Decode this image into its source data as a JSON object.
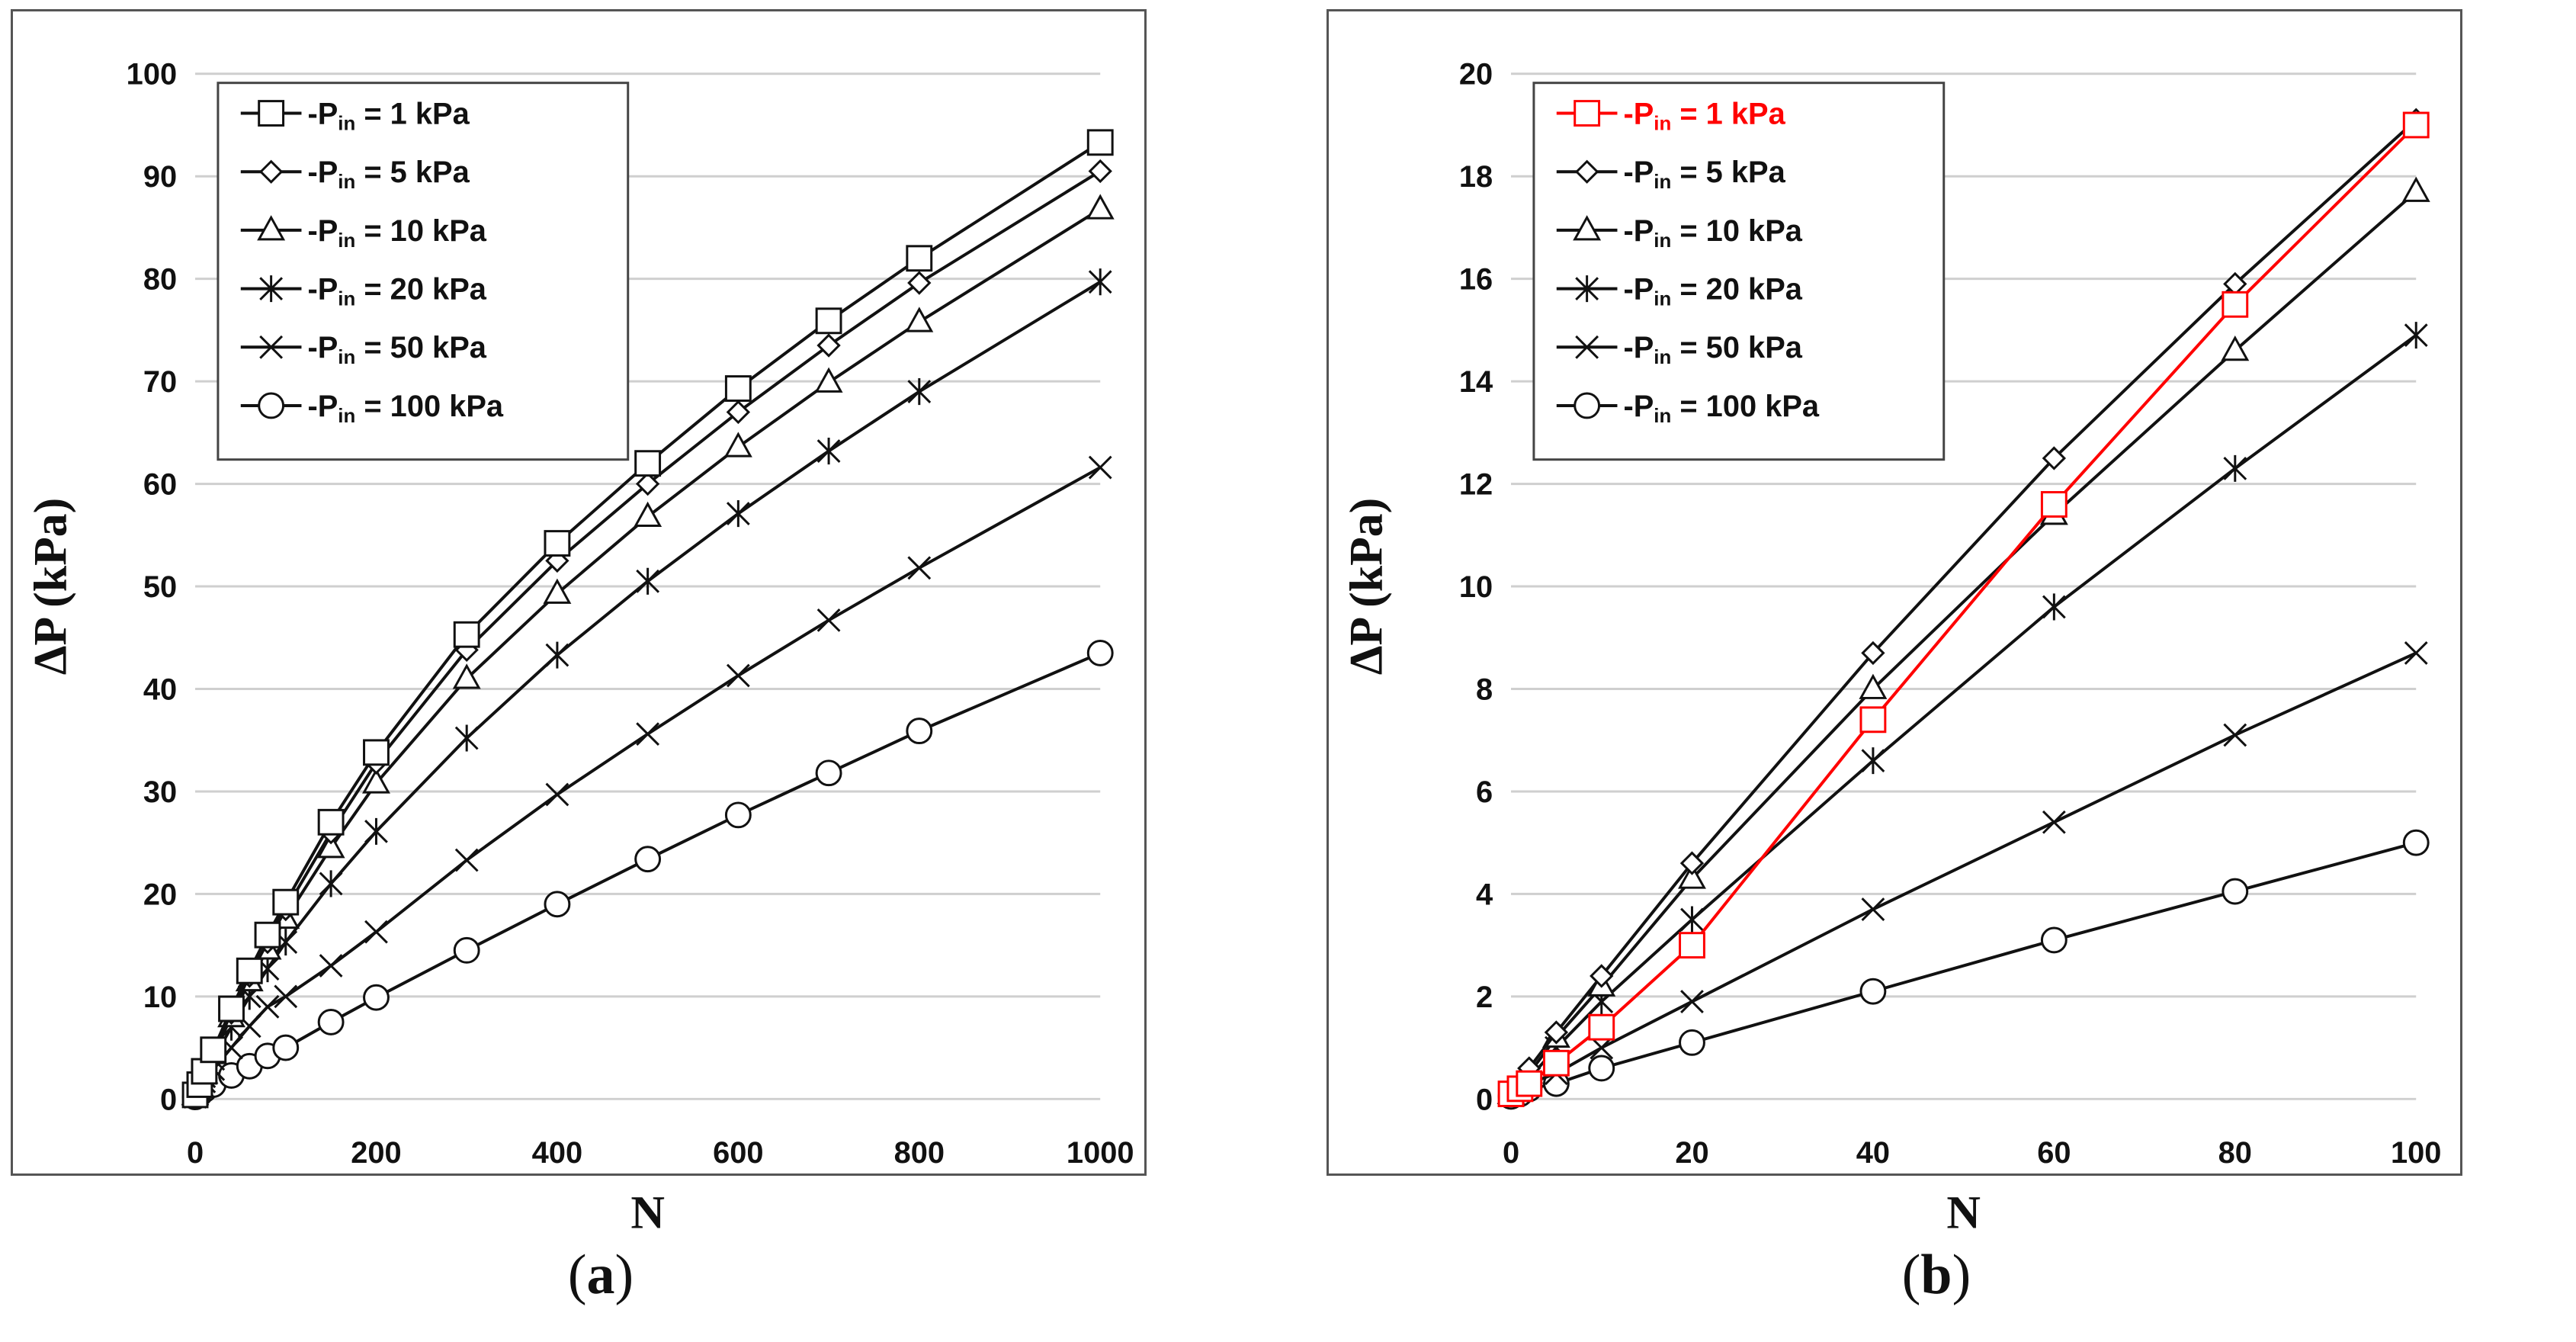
{
  "chart_data": [
    {
      "type": "line",
      "panel": "a",
      "xlabel": "N",
      "ylabel": "ΔP (kPa)",
      "xlim": [
        0,
        1000
      ],
      "ylim": [
        0,
        100
      ],
      "xticks": [
        0,
        200,
        400,
        600,
        800,
        1000
      ],
      "yticks": [
        0,
        10,
        20,
        30,
        40,
        50,
        60,
        70,
        80,
        90,
        100
      ],
      "grid": "horizontal",
      "legend_position": "top-left",
      "x": [
        0,
        5,
        10,
        20,
        40,
        60,
        80,
        100,
        150,
        200,
        300,
        400,
        500,
        600,
        700,
        800,
        1000
      ],
      "series": [
        {
          "name": "Pin = 1 kPa",
          "label_main": "P",
          "label_sub": "in",
          "label_rest": " = 1 kPa",
          "marker": "square",
          "color": "#111111",
          "values": [
            0.4,
            1.4,
            2.7,
            4.8,
            8.8,
            12.5,
            16.0,
            19.2,
            27.0,
            33.8,
            45.3,
            54.2,
            62.0,
            69.3,
            75.9,
            82.0,
            93.3
          ]
        },
        {
          "name": "Pin = 5 kPa",
          "label_main": "P",
          "label_sub": "in",
          "label_rest": " = 5 kPa",
          "marker": "diamond",
          "color": "#111111",
          "values": [
            0.4,
            1.3,
            2.6,
            4.6,
            8.4,
            12.0,
            15.3,
            18.5,
            26.0,
            32.8,
            43.8,
            52.5,
            60.0,
            67.0,
            73.5,
            79.6,
            90.5
          ]
        },
        {
          "name": "Pin = 10 kPa",
          "label_main": "P",
          "label_sub": "in",
          "label_rest": " = 10 kPa",
          "marker": "triangle",
          "color": "#111111",
          "values": [
            0.4,
            1.3,
            2.5,
            4.4,
            8.0,
            11.5,
            14.6,
            17.6,
            24.5,
            30.8,
            41.0,
            49.3,
            56.8,
            63.6,
            69.9,
            75.8,
            86.8
          ]
        },
        {
          "name": "Pin = 20 kPa",
          "label_main": "P",
          "label_sub": "in",
          "label_rest": " = 20 kPa",
          "marker": "asterisk",
          "color": "#111111",
          "values": [
            0.3,
            1.1,
            2.2,
            3.9,
            7.0,
            10.0,
            12.7,
            15.3,
            21.0,
            26.1,
            35.2,
            43.3,
            50.5,
            57.1,
            63.2,
            69.0,
            79.7
          ]
        },
        {
          "name": "Pin = 50 kPa",
          "label_main": "P",
          "label_sub": "in",
          "label_rest": " = 50 kPa",
          "marker": "x",
          "color": "#111111",
          "values": [
            0.2,
            0.9,
            1.7,
            2.9,
            5.0,
            7.1,
            9.0,
            10.0,
            13.0,
            16.3,
            23.3,
            29.7,
            35.6,
            41.3,
            46.7,
            51.8,
            61.6
          ]
        },
        {
          "name": "Pin = 100 kPa",
          "label_main": "P",
          "label_sub": "in",
          "label_rest": " = 100 kPa",
          "marker": "circle",
          "color": "#111111",
          "values": [
            0.2,
            0.5,
            0.9,
            1.4,
            2.3,
            3.2,
            4.2,
            5.0,
            7.5,
            9.9,
            14.5,
            19.0,
            23.4,
            27.7,
            31.8,
            35.9,
            43.5
          ]
        }
      ]
    },
    {
      "type": "line",
      "panel": "b",
      "xlabel": "N",
      "ylabel": "ΔP (kPa)",
      "xlim": [
        0,
        100
      ],
      "ylim": [
        0,
        20
      ],
      "xticks": [
        0,
        20,
        40,
        60,
        80,
        100
      ],
      "yticks": [
        0,
        2,
        4,
        6,
        8,
        10,
        12,
        14,
        16,
        18,
        20
      ],
      "grid": "horizontal",
      "legend_position": "top-left",
      "x": [
        0,
        1,
        2,
        5,
        10,
        20,
        40,
        60,
        80,
        100
      ],
      "series": [
        {
          "name": "Pin = 1 kPa",
          "label_main": "P",
          "label_sub": "in",
          "label_rest": " = 1 kPa",
          "marker": "square",
          "color": "#ff0000",
          "values": [
            0.1,
            0.2,
            0.3,
            0.7,
            1.4,
            3.0,
            7.4,
            11.6,
            15.5,
            19.0
          ]
        },
        {
          "name": "Pin = 5 kPa",
          "label_main": "P",
          "label_sub": "in",
          "label_rest": " = 5 kPa",
          "marker": "diamond",
          "color": "#111111",
          "values": [
            0.1,
            0.3,
            0.6,
            1.3,
            2.4,
            4.6,
            8.7,
            12.5,
            15.9,
            19.1
          ]
        },
        {
          "name": "Pin = 10 kPa",
          "label_main": "P",
          "label_sub": "in",
          "label_rest": " = 10 kPa",
          "marker": "triangle",
          "color": "#111111",
          "values": [
            0.1,
            0.3,
            0.5,
            1.2,
            2.2,
            4.3,
            8.0,
            11.4,
            14.6,
            17.7
          ]
        },
        {
          "name": "Pin = 20 kPa",
          "label_main": "P",
          "label_sub": "in",
          "label_rest": " = 20 kPa",
          "marker": "asterisk",
          "color": "#111111",
          "values": [
            0.1,
            0.2,
            0.4,
            1.0,
            1.9,
            3.5,
            6.6,
            9.6,
            12.3,
            14.9
          ]
        },
        {
          "name": "Pin = 50 kPa",
          "label_main": "P",
          "label_sub": "in",
          "label_rest": " = 50 kPa",
          "marker": "x",
          "color": "#111111",
          "values": [
            0.1,
            0.2,
            0.3,
            0.5,
            1.0,
            1.9,
            3.7,
            5.4,
            7.1,
            8.7
          ]
        },
        {
          "name": "Pin = 100 kPa",
          "label_main": "P",
          "label_sub": "in",
          "label_rest": " = 100 kPa",
          "marker": "circle",
          "color": "#111111",
          "values": [
            0.05,
            0.1,
            0.2,
            0.3,
            0.6,
            1.1,
            2.1,
            3.1,
            4.05,
            5.0
          ]
        }
      ]
    }
  ],
  "captions": {
    "a": {
      "open": "(",
      "letter": "a",
      "close": ")"
    },
    "b": {
      "open": "(",
      "letter": "b",
      "close": ")"
    }
  }
}
